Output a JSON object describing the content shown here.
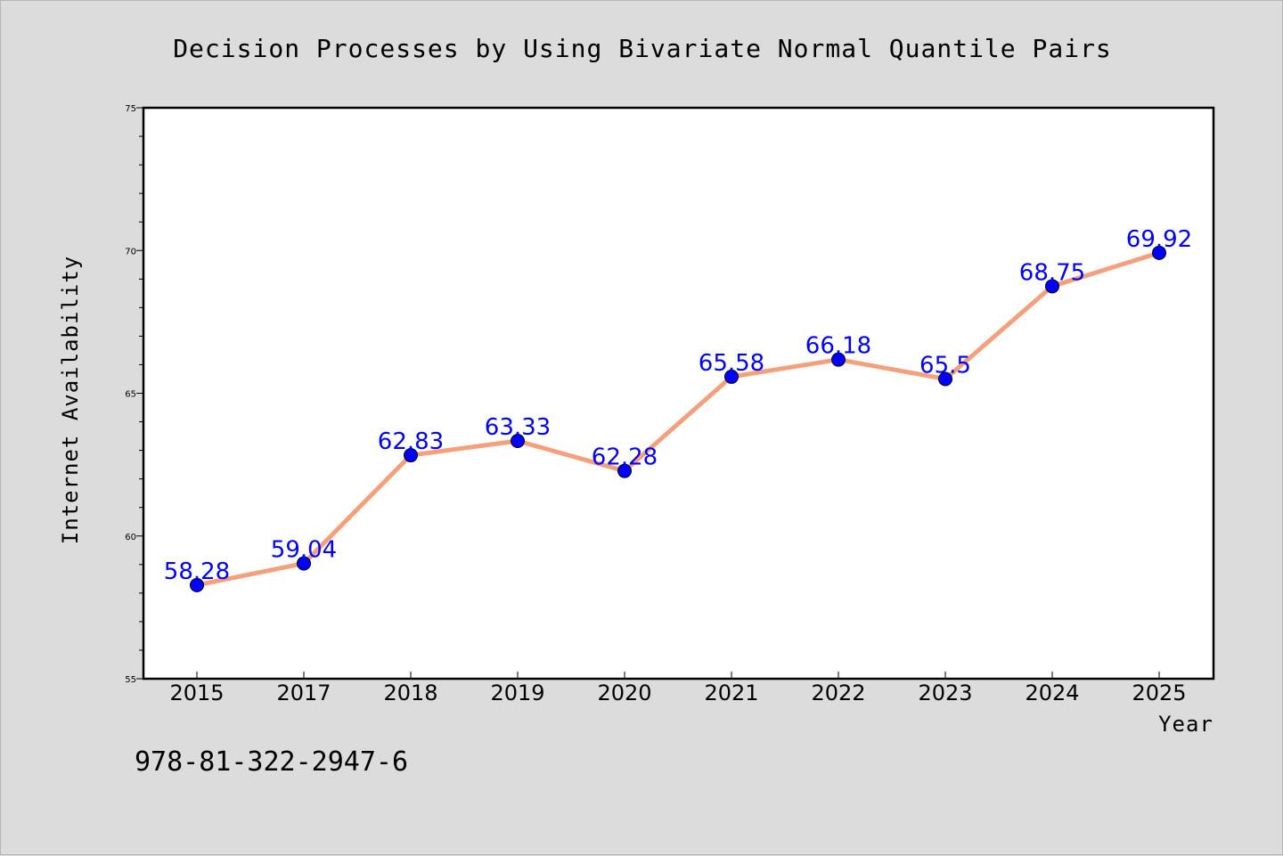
{
  "chart_data": {
    "type": "line",
    "title": "Decision Processes by Using Bivariate Normal Quantile Pairs",
    "xlabel": "Year",
    "ylabel": "Internet Availability",
    "categories": [
      "2015",
      "2017",
      "2018",
      "2019",
      "2020",
      "2021",
      "2022",
      "2023",
      "2024",
      "2025"
    ],
    "series": [
      {
        "values": [
          58.28,
          59.04,
          62.83,
          63.33,
          62.28,
          65.58,
          66.18,
          65.5,
          68.75,
          69.92
        ],
        "labels": [
          "58.28",
          "59.04",
          "62.83",
          "63.33",
          "62.28",
          "65.58",
          "66.18",
          "65.5",
          "68.75",
          "69.92"
        ]
      }
    ],
    "ylim": [
      55,
      75
    ],
    "yticks": [
      "55",
      "60",
      "65",
      "70",
      "75"
    ],
    "grid": false,
    "line_color": "#f4a07c",
    "marker_color": "#0000ff",
    "label_color": "#0000ff",
    "background_color": "#dcdcdc",
    "plot_background": "#ffffff"
  },
  "footer": {
    "isbn": "978-81-322-2947-6"
  }
}
